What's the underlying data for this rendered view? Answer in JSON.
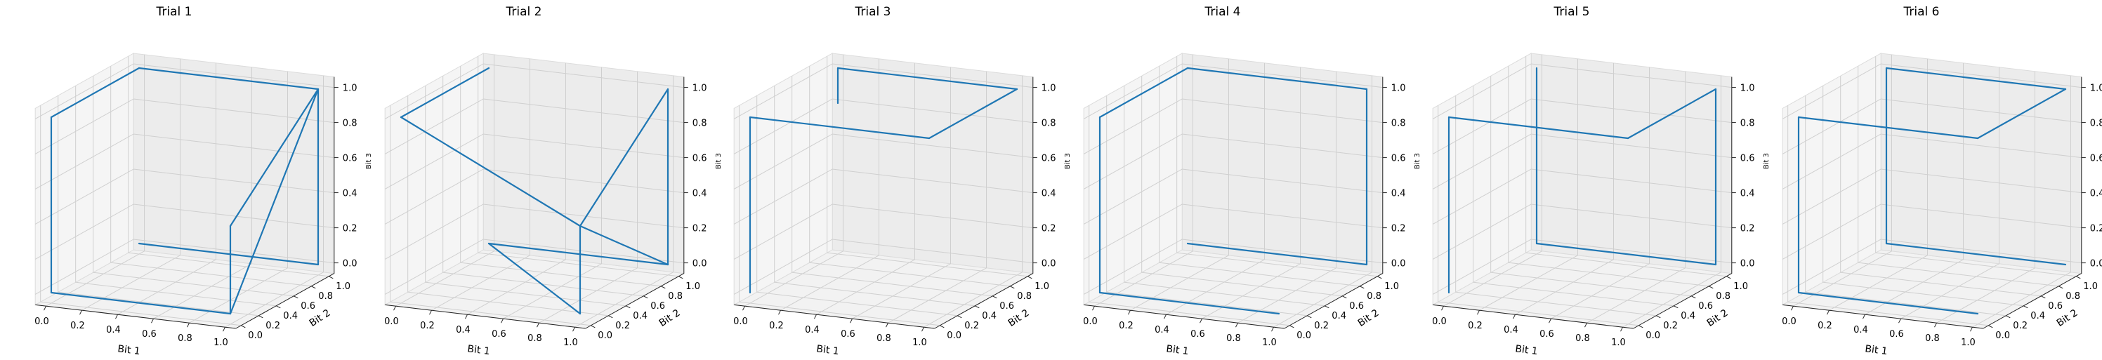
{
  "chart_data": [
    {
      "type": "line3d",
      "title": "Trial 1",
      "xlabel": "Bit 1",
      "ylabel": "Bit 2",
      "zlabel": "Bit 3",
      "xlim": [
        0,
        1
      ],
      "ylim": [
        0,
        1
      ],
      "zlim": [
        0,
        1
      ],
      "xticks": [
        "0.0",
        "0.2",
        "0.4",
        "0.6",
        "0.8",
        "1.0"
      ],
      "yticks": [
        "0.0",
        "0.2",
        "0.4",
        "0.6",
        "0.8",
        "1.0"
      ],
      "zticks": [
        "0.0",
        "0.2",
        "0.4",
        "0.6",
        "0.8",
        "1.0"
      ],
      "grid": true,
      "color": "#1f77b4",
      "points": [
        [
          1,
          0,
          0
        ],
        [
          0,
          0,
          0
        ],
        [
          0,
          0,
          1
        ],
        [
          0,
          1,
          1
        ],
        [
          1,
          1,
          1
        ],
        [
          1,
          0,
          0
        ],
        [
          1,
          0,
          0.5
        ],
        [
          1,
          1,
          1
        ],
        [
          1,
          1,
          0
        ],
        [
          0,
          1,
          0
        ]
      ]
    },
    {
      "type": "line3d",
      "title": "Trial 2",
      "xlabel": "Bit 1",
      "ylabel": "Bit 2",
      "zlabel": "Bit 3",
      "xlim": [
        0,
        1
      ],
      "ylim": [
        0,
        1
      ],
      "zlim": [
        0,
        1
      ],
      "xticks": [
        "0.0",
        "0.2",
        "0.4",
        "0.6",
        "0.8",
        "1.0"
      ],
      "yticks": [
        "0.0",
        "0.2",
        "0.4",
        "0.6",
        "0.8",
        "1.0"
      ],
      "zticks": [
        "0.0",
        "0.2",
        "0.4",
        "0.6",
        "0.8",
        "1.0"
      ],
      "grid": true,
      "color": "#1f77b4",
      "points": [
        [
          0,
          1,
          1
        ],
        [
          0,
          0,
          1
        ],
        [
          1,
          0,
          0.5
        ],
        [
          1,
          1,
          0
        ],
        [
          0,
          1,
          0
        ],
        [
          1,
          0,
          0
        ],
        [
          1,
          0,
          0.5
        ],
        [
          1,
          1,
          1
        ],
        [
          1,
          1,
          0
        ]
      ]
    },
    {
      "type": "line3d",
      "title": "Trial 3",
      "xlabel": "Bit 1",
      "ylabel": "Bit 2",
      "zlabel": "Bit 3",
      "xlim": [
        0,
        1
      ],
      "ylim": [
        0,
        1
      ],
      "zlim": [
        0,
        1
      ],
      "xticks": [
        "0.0",
        "0.2",
        "0.4",
        "0.6",
        "0.8",
        "1.0"
      ],
      "yticks": [
        "0.0",
        "0.2",
        "0.4",
        "0.6",
        "0.8",
        "1.0"
      ],
      "zticks": [
        "0.0",
        "0.2",
        "0.4",
        "0.6",
        "0.8",
        "1.0"
      ],
      "grid": true,
      "color": "#1f77b4",
      "points": [
        [
          0,
          0,
          0
        ],
        [
          0,
          0,
          1
        ],
        [
          1,
          0,
          1
        ],
        [
          1,
          1,
          1
        ],
        [
          0,
          1,
          1
        ],
        [
          0,
          1,
          0.8
        ]
      ]
    },
    {
      "type": "line3d",
      "title": "Trial 4",
      "xlabel": "Bit 1",
      "ylabel": "Bit 2",
      "zlabel": "Bit 3",
      "xlim": [
        0,
        1
      ],
      "ylim": [
        0,
        1
      ],
      "zlim": [
        0,
        1
      ],
      "xticks": [
        "0.0",
        "0.2",
        "0.4",
        "0.6",
        "0.8",
        "1.0"
      ],
      "yticks": [
        "0.0",
        "0.2",
        "0.4",
        "0.6",
        "0.8",
        "1.0"
      ],
      "zticks": [
        "0.0",
        "0.2",
        "0.4",
        "0.6",
        "0.8",
        "1.0"
      ],
      "grid": true,
      "color": "#1f77b4",
      "points": [
        [
          1,
          0,
          0
        ],
        [
          0,
          0,
          0
        ],
        [
          0,
          0,
          1
        ],
        [
          0,
          1,
          1
        ],
        [
          1,
          1,
          1
        ],
        [
          1,
          1,
          0
        ],
        [
          0,
          1,
          0
        ]
      ]
    },
    {
      "type": "line3d",
      "title": "Trial 5",
      "xlabel": "Bit 1",
      "ylabel": "Bit 2",
      "zlabel": "Bit 3",
      "xlim": [
        0,
        1
      ],
      "ylim": [
        0,
        1
      ],
      "zlim": [
        0,
        1
      ],
      "xticks": [
        "0.0",
        "0.2",
        "0.4",
        "0.6",
        "0.8",
        "1.0"
      ],
      "yticks": [
        "0.0",
        "0.2",
        "0.4",
        "0.6",
        "0.8",
        "1.0"
      ],
      "zticks": [
        "0.0",
        "0.2",
        "0.4",
        "0.6",
        "0.8",
        "1.0"
      ],
      "grid": true,
      "color": "#1f77b4",
      "points": [
        [
          0,
          0,
          0
        ],
        [
          0,
          0,
          1
        ],
        [
          1,
          0,
          1
        ],
        [
          1,
          1,
          1
        ],
        [
          1,
          1,
          0
        ],
        [
          0,
          1,
          0
        ],
        [
          0,
          1,
          1
        ]
      ]
    },
    {
      "type": "line3d",
      "title": "Trial 6",
      "xlabel": "Bit 1",
      "ylabel": "Bit 2",
      "zlabel": "Bit 3",
      "xlim": [
        0,
        1
      ],
      "ylim": [
        0,
        1
      ],
      "zlim": [
        0,
        1
      ],
      "xticks": [
        "0.0",
        "0.2",
        "0.4",
        "0.6",
        "0.8",
        "1.0"
      ],
      "yticks": [
        "0.0",
        "0.2",
        "0.4",
        "0.6",
        "0.8",
        "1.0"
      ],
      "zticks": [
        "0.0",
        "0.2",
        "0.4",
        "0.6",
        "0.8",
        "1.0"
      ],
      "grid": true,
      "color": "#1f77b4",
      "points": [
        [
          1,
          0,
          0
        ],
        [
          0,
          0,
          0
        ],
        [
          0,
          0,
          1
        ],
        [
          1,
          0,
          1
        ],
        [
          1,
          1,
          1
        ],
        [
          0,
          1,
          1
        ],
        [
          0,
          1,
          0
        ],
        [
          1,
          1,
          0
        ]
      ]
    }
  ]
}
